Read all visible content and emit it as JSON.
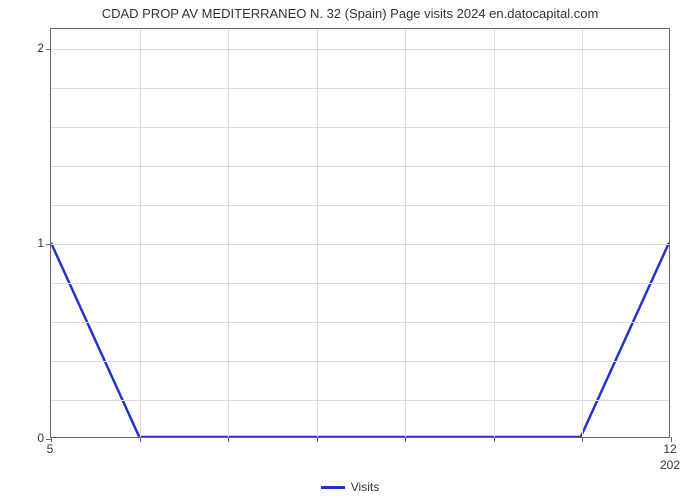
{
  "chart": {
    "type": "line",
    "title": "CDAD PROP AV MEDITERRANEO N. 32 (Spain) Page visits 2024 en.datocapital.com",
    "title_fontsize": 13,
    "title_color": "#333333",
    "background_color": "#ffffff",
    "plot_border_color": "#666666",
    "grid_color": "#dddddd",
    "x": {
      "values": [
        5,
        6,
        7,
        8,
        9,
        10,
        11,
        12
      ],
      "tick_labels": [
        "5",
        "",
        "",
        "",
        "",
        "",
        "",
        "12"
      ],
      "sublabel_right": "202",
      "lim": [
        5,
        12
      ],
      "fontsize": 12,
      "tick_color": "#666666"
    },
    "y": {
      "tick_values": [
        0,
        1,
        2
      ],
      "tick_labels": [
        "0",
        "1",
        "2"
      ],
      "lim": [
        0,
        2.1
      ],
      "fontsize": 12,
      "tick_color": "#666666",
      "grid_minor_count": 4
    },
    "series": {
      "name": "Visits",
      "color": "#2233cc",
      "line_width": 2.5,
      "x_data": [
        5,
        6,
        7,
        8,
        9,
        10,
        11,
        12
      ],
      "y_data": [
        1,
        0,
        0,
        0,
        0,
        0,
        0,
        1
      ]
    },
    "legend": {
      "label": "Visits",
      "swatch_color": "#2233cc",
      "fontsize": 12
    }
  }
}
